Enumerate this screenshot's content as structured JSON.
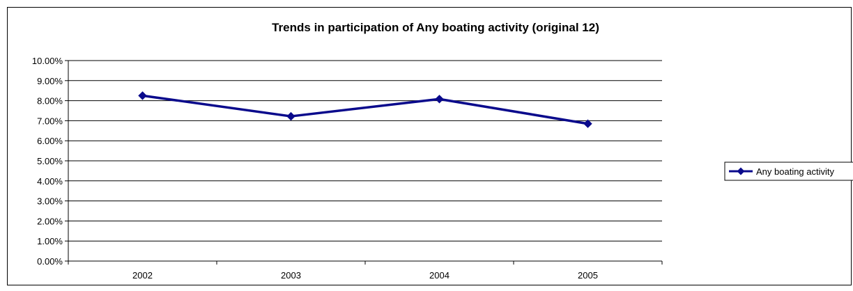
{
  "chart_data": {
    "type": "line",
    "title": "Trends in participation of Any boating activity (original 12)",
    "xlabel": "",
    "ylabel": "",
    "categories": [
      "2002",
      "2003",
      "2004",
      "2005"
    ],
    "series": [
      {
        "name": "Any boating activity",
        "values": [
          0.0825,
          0.0722,
          0.0808,
          0.0685
        ],
        "color": "#0a0a8c",
        "marker": "diamond"
      }
    ],
    "ylim": [
      0,
      0.1
    ],
    "yticks": [
      "0.00%",
      "1.00%",
      "2.00%",
      "3.00%",
      "4.00%",
      "5.00%",
      "6.00%",
      "7.00%",
      "8.00%",
      "9.00%",
      "10.00%"
    ],
    "grid": "horizontal",
    "legend": "right"
  }
}
